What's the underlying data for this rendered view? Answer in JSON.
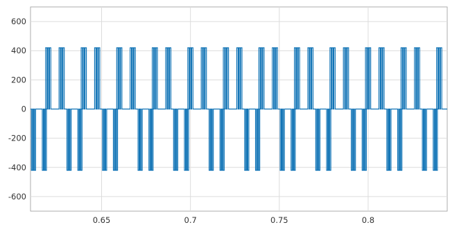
{
  "chart_data": {
    "type": "line",
    "title": "",
    "xlabel": "",
    "ylabel": "",
    "xlim": [
      0.61,
      0.8445
    ],
    "ylim": [
      -700,
      700
    ],
    "xticks": [
      0.65,
      0.7,
      0.75,
      0.8
    ],
    "yticks": [
      -600,
      -400,
      -200,
      0,
      200,
      400,
      600
    ],
    "grid": true,
    "legend": "none",
    "line_color": "#0e72b5",
    "series": [
      {
        "kind": "three-level-pwm-voltage",
        "levels": [
          -420,
          0,
          420
        ],
        "period": 0.02,
        "first_positive_half_start": 0.6185,
        "positive_block": [
          0.6185,
          0.629
        ],
        "negative_block": [
          0.6105,
          0.619
        ],
        "pulse_count_per_block": 6
      }
    ]
  }
}
